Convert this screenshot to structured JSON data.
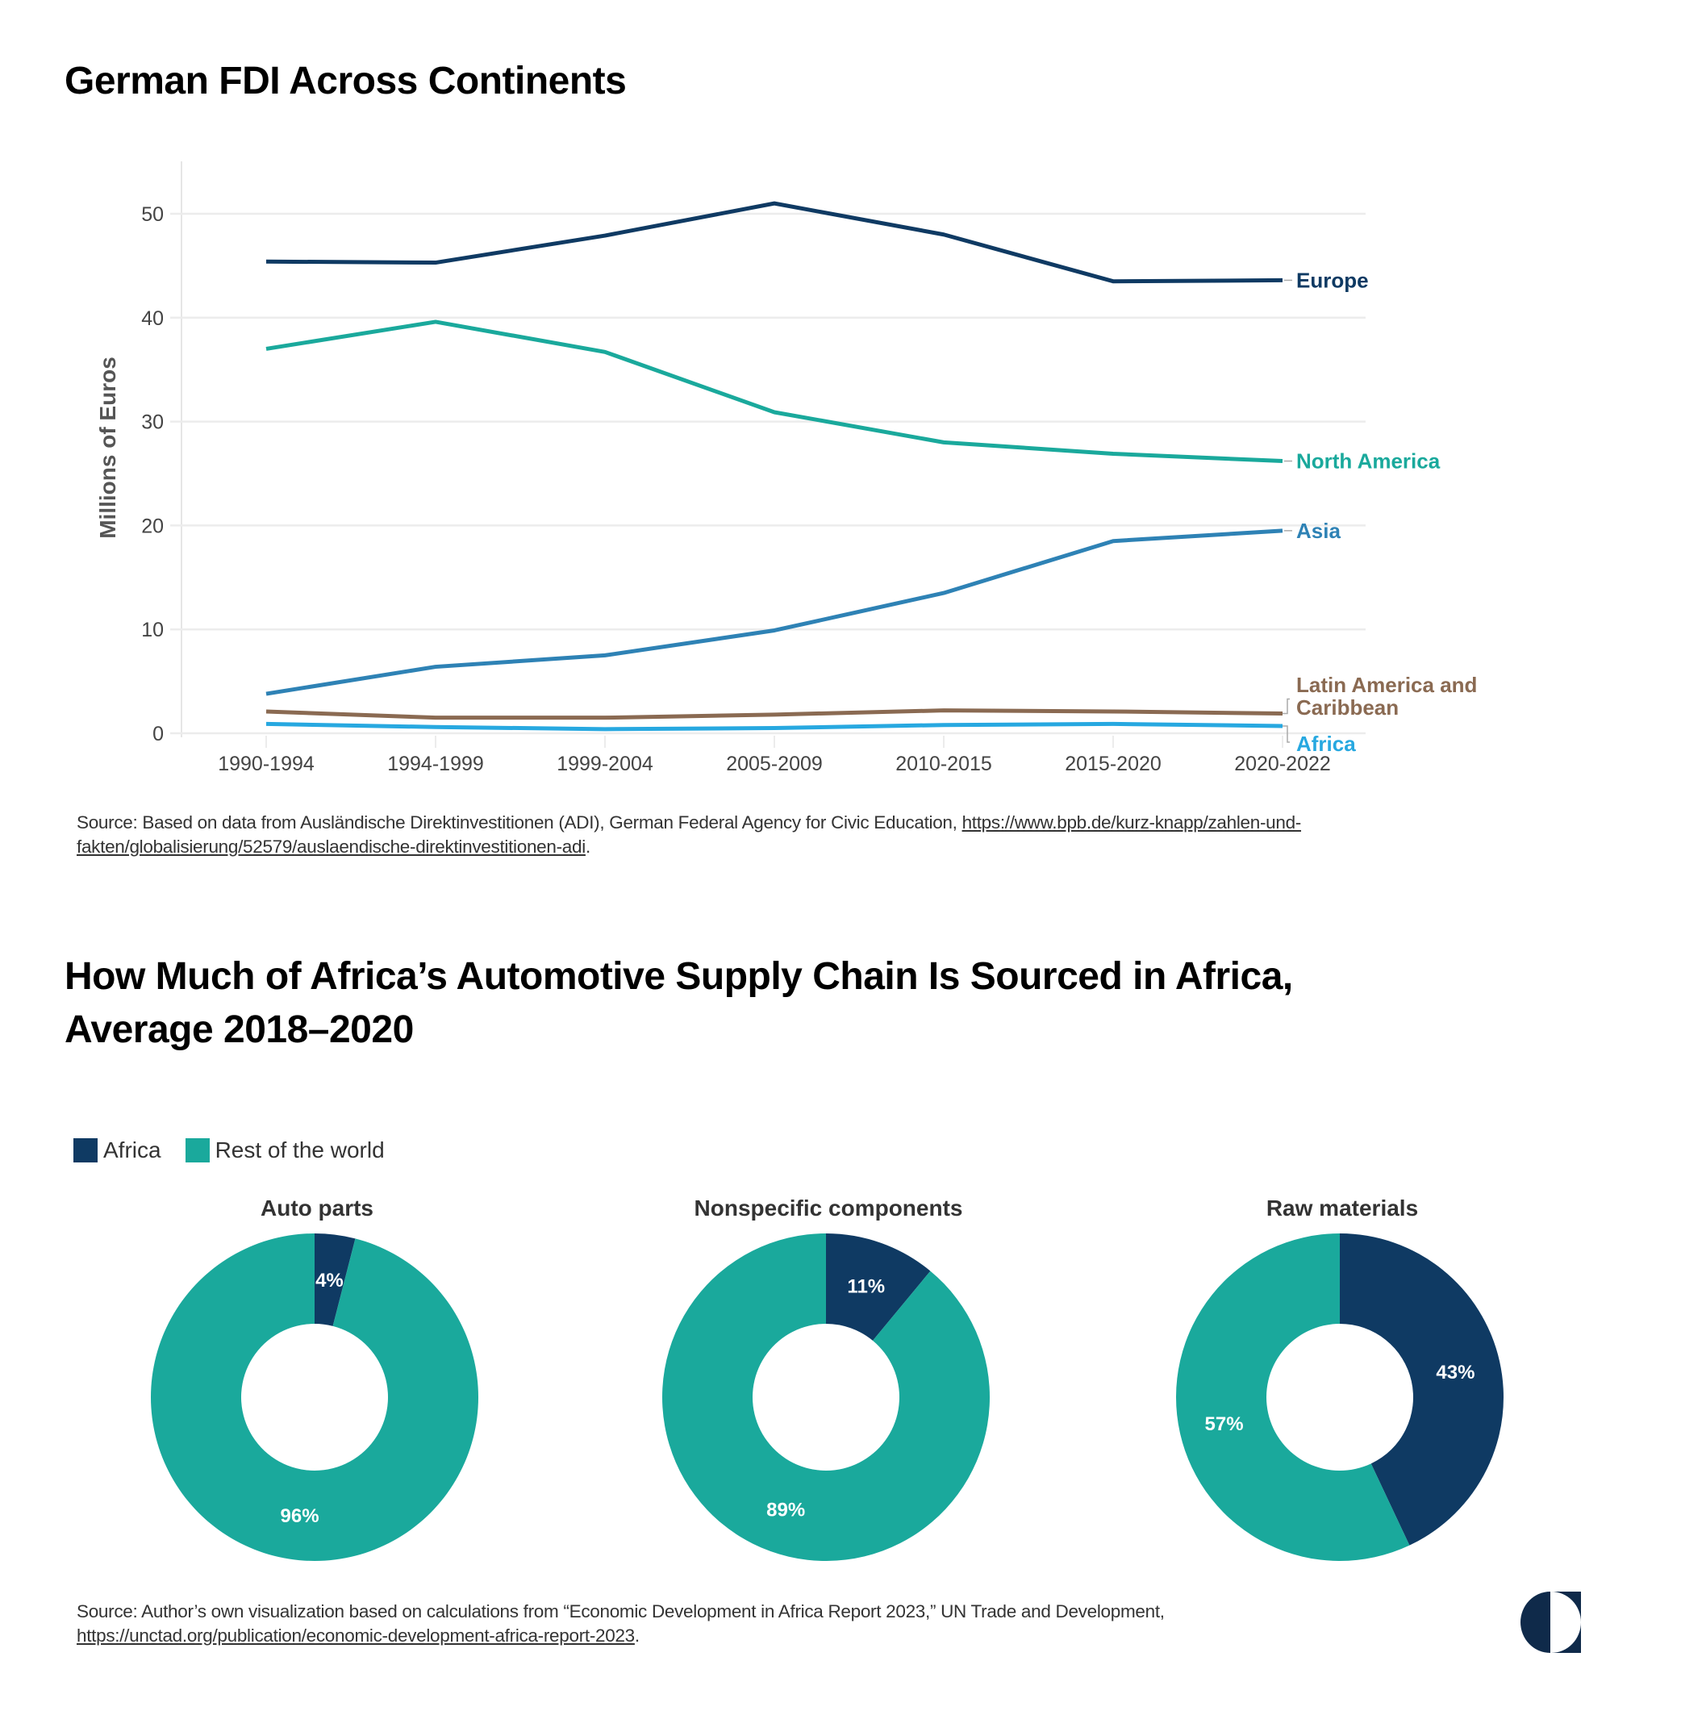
{
  "chart_data": [
    {
      "type": "line",
      "title": "German FDI Across Continents",
      "xlabel": "",
      "ylabel": "Millions of Euros",
      "ylim": [
        0,
        55
      ],
      "yticks": [
        0,
        10,
        20,
        30,
        40,
        50
      ],
      "grid": true,
      "legend": "direct labels at line ends (right)",
      "categories": [
        "1990-1994",
        "1994-1999",
        "1999-2004",
        "2005-2009",
        "2010-2015",
        "2015-2020",
        "2020-2022"
      ],
      "series": [
        {
          "name": "Europe",
          "color": "#0f3a63",
          "values": [
            45.4,
            45.3,
            47.9,
            51.0,
            48.0,
            43.5,
            43.6
          ]
        },
        {
          "name": "North America",
          "color": "#1aa99c",
          "values": [
            37.0,
            39.6,
            36.7,
            30.9,
            28.0,
            26.9,
            26.2
          ]
        },
        {
          "name": "Asia",
          "color": "#2e82b5",
          "values": [
            3.8,
            6.4,
            7.5,
            9.9,
            13.5,
            18.5,
            19.5
          ]
        },
        {
          "name": "Latin America and Caribbean",
          "label_lines": [
            "Latin America and",
            "Caribbean"
          ],
          "color": "#8a6a52",
          "values": [
            2.1,
            1.5,
            1.5,
            1.8,
            2.2,
            2.1,
            1.9
          ]
        },
        {
          "name": "Africa",
          "color": "#27a8e0",
          "values": [
            0.9,
            0.6,
            0.4,
            0.5,
            0.8,
            0.9,
            0.7
          ]
        }
      ]
    },
    {
      "type": "pie",
      "variant": "donut",
      "title": "How Much of Africa’s Automotive Supply Chain Is Sourced in Africa, Average 2018–2020",
      "legend": "top-left",
      "legend_entries": [
        {
          "name": "Africa",
          "color": "#0f3a63"
        },
        {
          "name": "Rest of the world",
          "color": "#1aa99c"
        }
      ],
      "charts": [
        {
          "title": "Auto parts",
          "slices": [
            {
              "name": "Africa",
              "value": 4,
              "label": "4%"
            },
            {
              "name": "Rest of the world",
              "value": 96,
              "label": "96%"
            }
          ]
        },
        {
          "title": "Nonspecific components",
          "slices": [
            {
              "name": "Africa",
              "value": 11,
              "label": "11%"
            },
            {
              "name": "Rest of the world",
              "value": 89,
              "label": "89%"
            }
          ]
        },
        {
          "title": "Raw materials",
          "slices": [
            {
              "name": "Africa",
              "value": 43,
              "label": "43%"
            },
            {
              "name": "Rest of the world",
              "value": 57,
              "label": "57%"
            }
          ]
        }
      ]
    }
  ],
  "titles": {
    "line_chart": "German FDI Across Continents",
    "donut_line1": "How Much of Africa’s Automotive Supply Chain Is Sourced in Africa,",
    "donut_line2": "Average 2018–2020"
  },
  "sources": {
    "line_chart_prefix": "Source: Based on data from Ausländische Direktinvestitionen (ADI), German Federal Agency for Civic Education, ",
    "line_chart_link": "https://www.bpb.de/kurz-knapp/zahlen-und-fakten/globalisierung/52579/auslaendische-direktinvestitionen-adi",
    "line_chart_suffix": ".",
    "donut_prefix": "Source: Author’s own visualization based on calculations from “Economic Development in Africa Report 2023,” UN Trade and Development, ",
    "donut_link": "https://unctad.org/publication/economic-development-africa-report-2023",
    "donut_suffix": "."
  },
  "colors": {
    "africa": "#0f3a63",
    "rest": "#1aa99c",
    "grid": "#ececec",
    "axis_text": "#444444"
  },
  "logo": {
    "icon": "half-circle-logo-icon"
  }
}
